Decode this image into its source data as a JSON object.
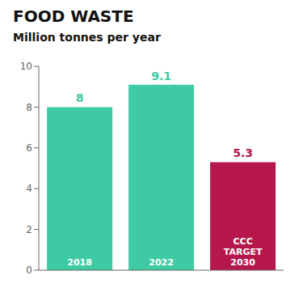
{
  "chart_data": {
    "type": "bar",
    "title": "FOOD WASTE",
    "subtitle": "Million tonnes per year",
    "categories": [
      "2018",
      "2022",
      "CCC\nTARGET\n2030"
    ],
    "values": [
      8.0,
      9.1,
      5.3
    ],
    "colors": [
      "#3ecba3",
      "#3ecba3",
      "#b5174b"
    ],
    "ylim": [
      0,
      10
    ],
    "yticks": [
      0,
      2,
      4,
      6,
      8,
      10
    ],
    "grid": false,
    "data_labels": true,
    "tick_labels": "y"
  }
}
